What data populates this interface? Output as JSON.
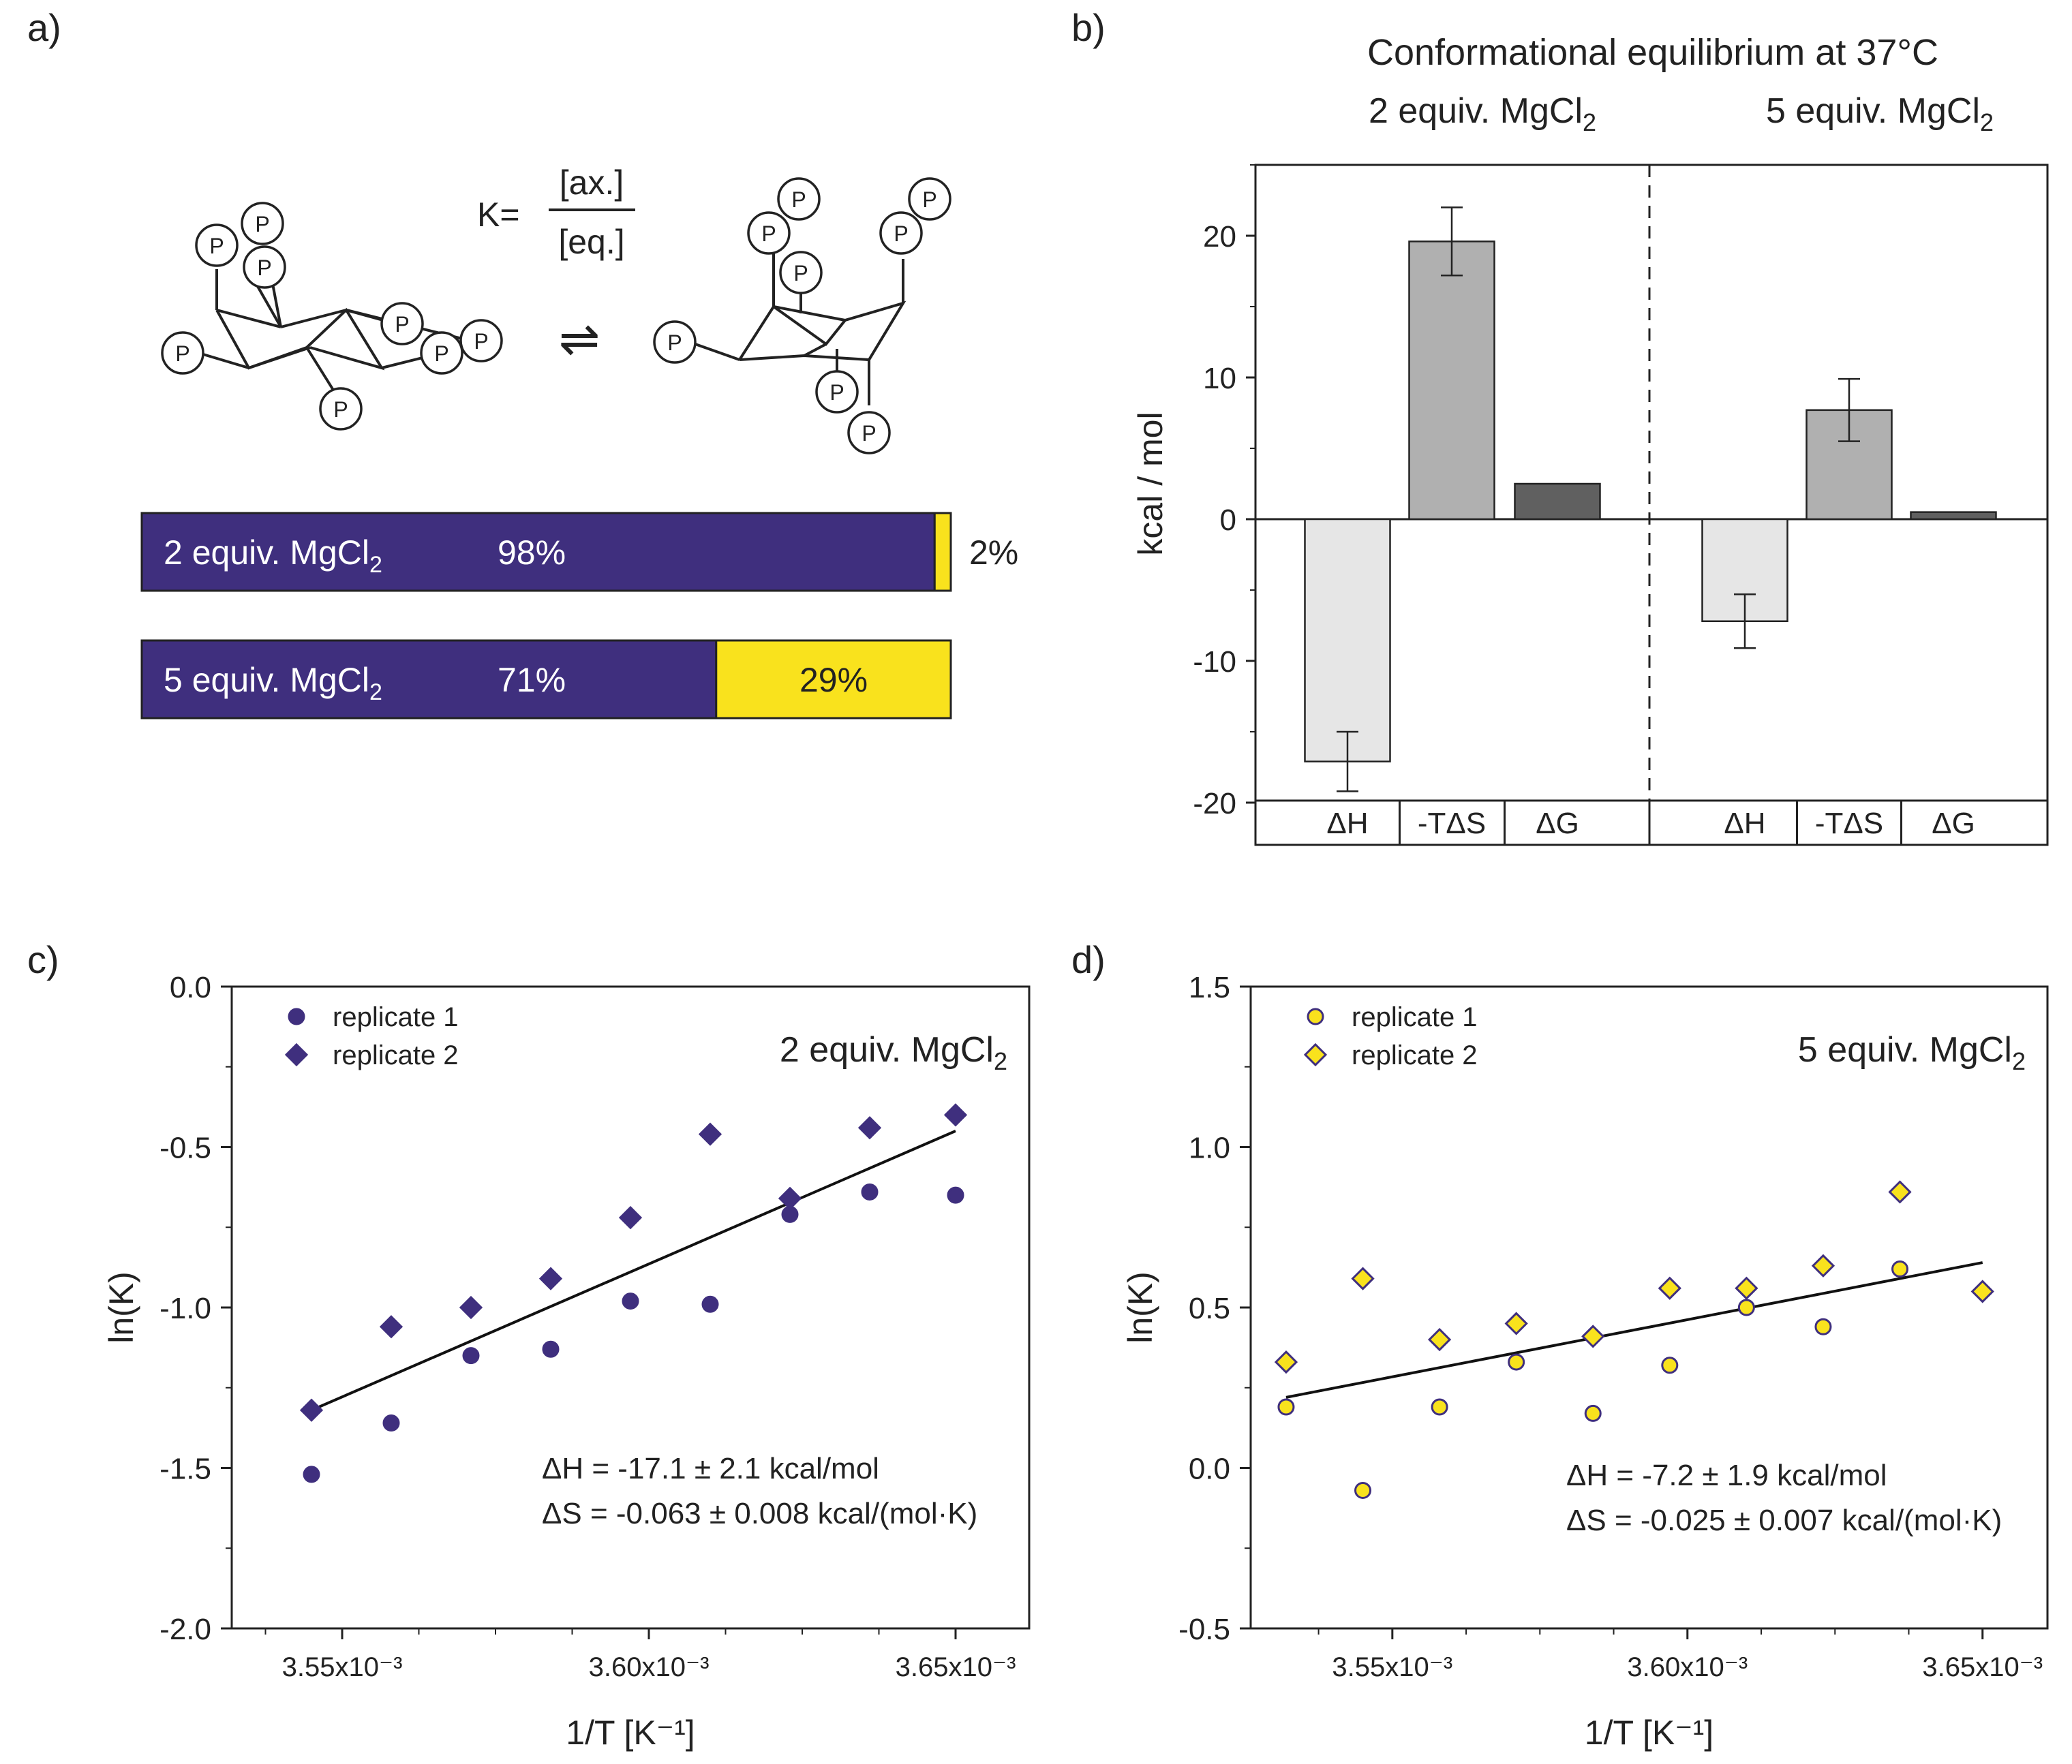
{
  "panels": {
    "a": {
      "label": "a)",
      "k_expr": {
        "prefix": "K=",
        "numerator": "[ax.]",
        "denominator": "[eq.]"
      },
      "phosphate_label": "P",
      "equilibrium_arrow": "⇌",
      "bars": [
        {
          "label": "2 equiv. MgCl",
          "subscript": "2",
          "eq_pct_label": "98%",
          "ax_pct_label": "2%",
          "eq_fraction": 0.98,
          "ax_fraction": 0.02
        },
        {
          "label": "5 equiv. MgCl",
          "subscript": "2",
          "eq_pct_label": "71%",
          "ax_pct_label": "29%",
          "eq_fraction": 0.71,
          "ax_fraction": 0.29
        }
      ]
    },
    "b": {
      "label": "b)"
    },
    "c": {
      "label": "c)"
    },
    "d": {
      "label": "d)"
    }
  },
  "colors": {
    "purple": "#3f2f7e",
    "yellow": "#f9e21d",
    "bar_dh": "#e6e6e6",
    "bar_tds": "#b0b0b0",
    "bar_dg": "#606060",
    "axis": "#222222"
  },
  "chart_data": [
    {
      "id": "b",
      "type": "bar",
      "title": "Conformational equilibrium at 37°C",
      "group_titles": [
        {
          "text": "2 equiv. MgCl",
          "sub": "2"
        },
        {
          "text": "5 equiv. MgCl",
          "sub": "2"
        }
      ],
      "ylabel": "kcal / mol",
      "ylim": [
        -20,
        25
      ],
      "yticks": [
        -20,
        -10,
        0,
        10,
        20
      ],
      "ytick_labels": [
        "-20",
        "-10",
        "0",
        "10",
        "20"
      ],
      "categories": [
        "ΔH",
        "-TΔS",
        "ΔG",
        "ΔH",
        "-TΔS",
        "ΔG"
      ],
      "values": [
        -17.1,
        19.6,
        2.5,
        -7.2,
        7.7,
        0.5
      ],
      "errors": [
        2.1,
        2.4,
        0,
        1.9,
        2.2,
        0
      ],
      "bar_colors": [
        "#e6e6e6",
        "#b0b0b0",
        "#606060",
        "#e6e6e6",
        "#b0b0b0",
        "#606060"
      ]
    },
    {
      "id": "c",
      "type": "scatter",
      "annotation_title": {
        "text": "2 equiv. MgCl",
        "sub": "2"
      },
      "xlabel": "1/T [K⁻¹]",
      "ylabel": "ln(K)",
      "xlim": [
        0.003532,
        0.003662
      ],
      "ylim": [
        -2.0,
        0.0
      ],
      "xticks": [
        0.00355,
        0.0036,
        0.00365
      ],
      "xtick_labels": [
        "3.55x10⁻³",
        "3.60x10⁻³",
        "3.65x10⁻³"
      ],
      "yticks": [
        -2.0,
        -1.5,
        -1.0,
        -0.5,
        0.0
      ],
      "ytick_labels": [
        "-2.0",
        "-1.5",
        "-1.0",
        "-0.5",
        "0.0"
      ],
      "marker_fill": "#3f2f7e",
      "marker_stroke": "#3f2f7e",
      "series": [
        {
          "name": "replicate 1",
          "marker": "circle",
          "x": [
            0.003545,
            0.003558,
            0.003571,
            0.003584,
            0.003597,
            0.00361,
            0.003623,
            0.003636,
            0.00365
          ],
          "y": [
            -1.52,
            -1.36,
            -1.15,
            -1.13,
            -0.98,
            -0.99,
            -0.71,
            -0.64,
            -0.65
          ]
        },
        {
          "name": "replicate 2",
          "marker": "diamond",
          "x": [
            0.003545,
            0.003558,
            0.003571,
            0.003584,
            0.003597,
            0.00361,
            0.003623,
            0.003636,
            0.00365
          ],
          "y": [
            -1.32,
            -1.06,
            -1.0,
            -0.91,
            -0.72,
            -0.46,
            -0.66,
            -0.44,
            -0.4
          ]
        }
      ],
      "fit": {
        "x": [
          0.003545,
          0.00365
        ],
        "y": [
          -1.32,
          -0.45
        ]
      },
      "annotations": [
        "ΔH = -17.1 ± 2.1 kcal/mol",
        "ΔS = -0.063 ± 0.008 kcal/(mol·K)"
      ]
    },
    {
      "id": "d",
      "type": "scatter",
      "annotation_title": {
        "text": "5 equiv. MgCl",
        "sub": "2"
      },
      "xlabel": "1/T [K⁻¹]",
      "ylabel": "ln(K)",
      "xlim": [
        0.003526,
        0.003661
      ],
      "ylim": [
        -0.5,
        1.5
      ],
      "xticks": [
        0.00355,
        0.0036,
        0.00365
      ],
      "xtick_labels": [
        "3.55x10⁻³",
        "3.60x10⁻³",
        "3.65x10⁻³"
      ],
      "yticks": [
        -0.5,
        0.0,
        0.5,
        1.0,
        1.5
      ],
      "ytick_labels": [
        "-0.5",
        "0.0",
        "0.5",
        "1.0",
        "1.5"
      ],
      "marker_fill": "#f9e21d",
      "marker_stroke": "#3f2f7e",
      "series": [
        {
          "name": "replicate 1",
          "marker": "circle",
          "x": [
            0.003532,
            0.003545,
            0.003558,
            0.003571,
            0.003584,
            0.003597,
            0.00361,
            0.003623,
            0.003636
          ],
          "y": [
            0.19,
            -0.07,
            0.19,
            0.33,
            0.17,
            0.32,
            0.5,
            0.44,
            0.62
          ]
        },
        {
          "name": "replicate 2",
          "marker": "diamond",
          "x": [
            0.003532,
            0.003545,
            0.003558,
            0.003571,
            0.003584,
            0.003597,
            0.00361,
            0.003623,
            0.003636,
            0.00365
          ],
          "y": [
            0.33,
            0.59,
            0.4,
            0.45,
            0.41,
            0.56,
            0.56,
            0.63,
            0.86,
            0.55
          ]
        }
      ],
      "fit": {
        "x": [
          0.003532,
          0.00365
        ],
        "y": [
          0.22,
          0.64
        ]
      },
      "annotations": [
        "ΔH = -7.2 ± 1.9 kcal/mol",
        "ΔS = -0.025 ± 0.007 kcal/(mol·K)"
      ]
    }
  ]
}
